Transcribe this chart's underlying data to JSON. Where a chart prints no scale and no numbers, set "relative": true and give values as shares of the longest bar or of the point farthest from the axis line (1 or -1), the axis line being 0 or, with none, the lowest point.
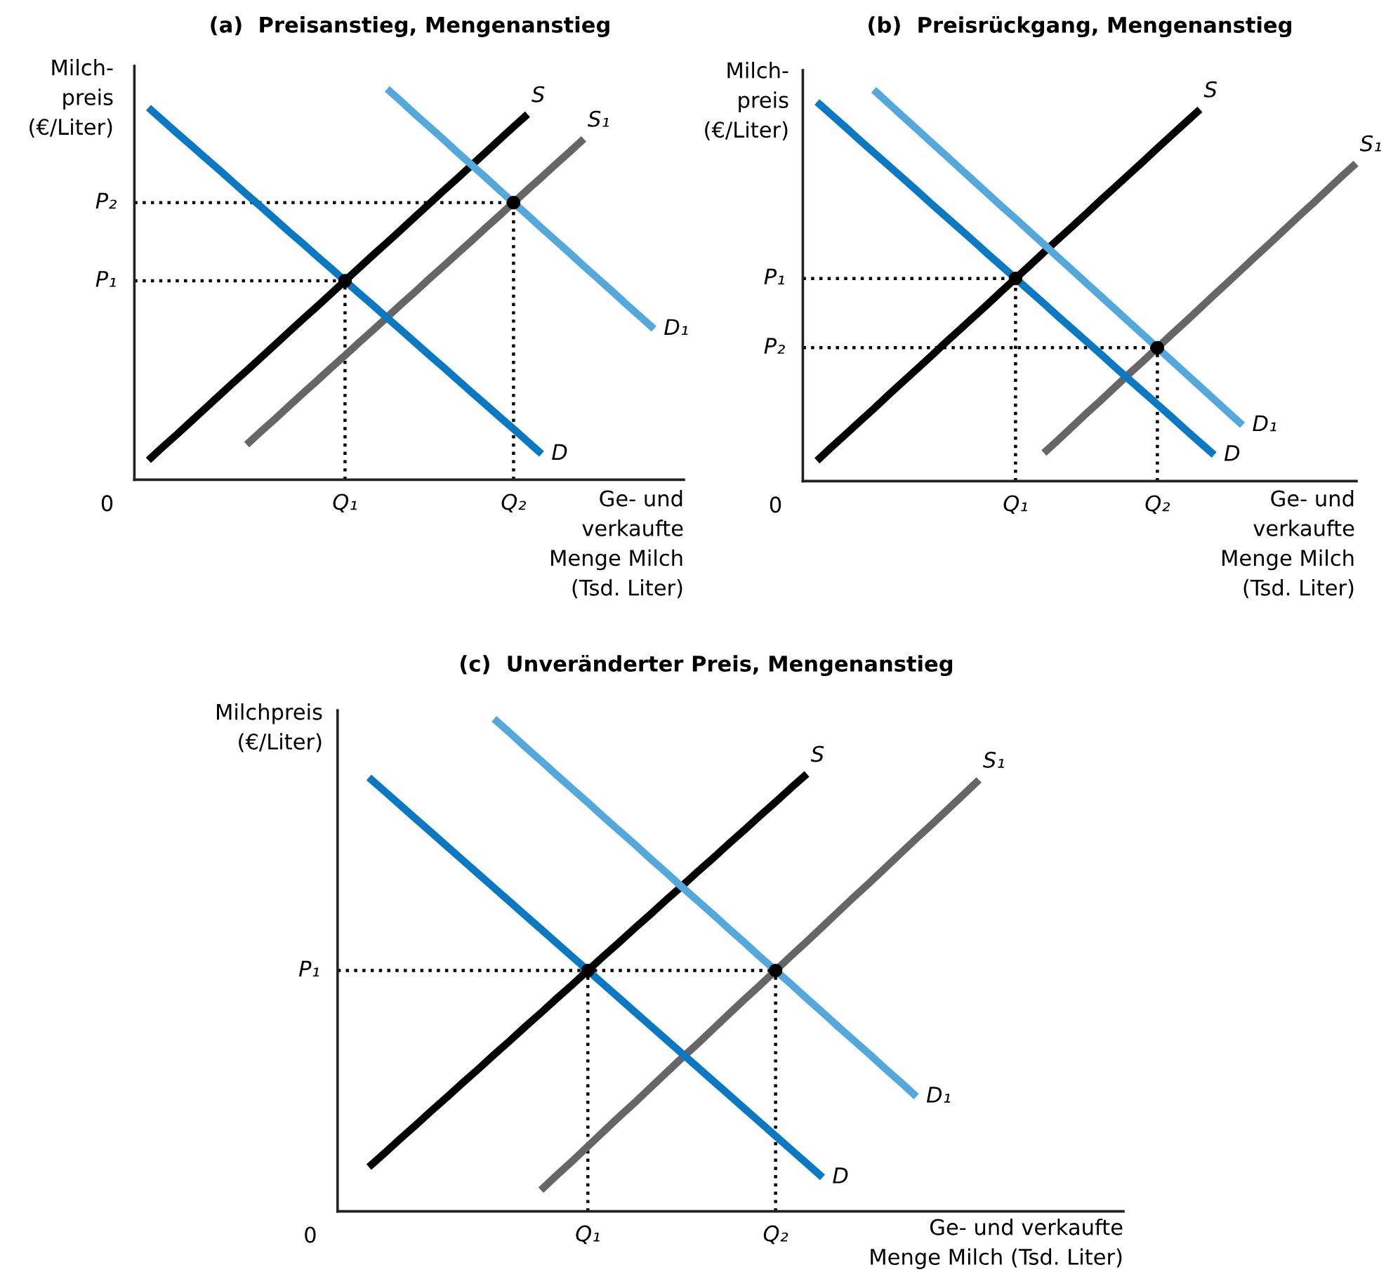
{
  "chart_data": [
    {
      "type": "line",
      "title": "(a)  Preisanstieg, Mengenanstieg",
      "ylabel": "Milch-\npreis\n(€/Liter)",
      "xlabel": "Ge- und\nverkaufte\nMenge Milch\n(Tsd. Liter)",
      "relative": true,
      "categories": [
        null,
        null,
        null,
        null,
        null,
        null,
        null,
        null,
        null,
        null,
        null,
        null,
        null,
        null,
        null,
        "Q₁",
        null,
        null,
        null,
        null,
        null,
        null,
        null,
        null,
        null,
        null,
        null,
        "Q₂",
        null,
        null,
        null,
        null,
        null,
        null,
        null,
        null,
        null,
        null,
        null,
        null
      ],
      "annotations": [
        "0"
      ],
      "series": [
        {
          "name": "P₁",
          "color": "#000000",
          "line_style": "dotted",
          "values": [
            0.509,
            0.509,
            0.509,
            0.509,
            0.509,
            0.509,
            0.509,
            0.509,
            0.509,
            0.509,
            0.509,
            0.509,
            0.509,
            0.509,
            0.509,
            0.509,
            null,
            null,
            null,
            null,
            null,
            null,
            null,
            null,
            null,
            null,
            null,
            null,
            null,
            null,
            null,
            null,
            null,
            null,
            null,
            null,
            null,
            null,
            null,
            null
          ]
        },
        {
          "name": "P₂",
          "color": "#000000",
          "line_style": "dotted",
          "values": [
            0.709,
            0.709,
            0.709,
            0.709,
            0.709,
            0.709,
            0.709,
            0.709,
            0.709,
            0.709,
            0.709,
            0.709,
            0.709,
            0.709,
            0.709,
            0.709,
            0.709,
            0.709,
            0.709,
            0.709,
            0.709,
            0.709,
            0.709,
            0.709,
            0.709,
            0.709,
            0.709,
            0.709,
            null,
            null,
            null,
            null,
            null,
            null,
            null,
            null,
            null,
            null,
            null,
            null
          ]
        },
        {
          "name": "S",
          "color": "#000000",
          "values": [
            null,
            0.05,
            0.083,
            0.115,
            0.148,
            0.181,
            0.214,
            0.247,
            0.279,
            0.312,
            0.345,
            0.378,
            0.411,
            0.443,
            0.476,
            0.509,
            0.542,
            0.575,
            0.607,
            0.64,
            0.673,
            0.706,
            0.739,
            0.771,
            0.804,
            0.837,
            0.87,
            0.903,
            0.935,
            null,
            null,
            null,
            null,
            null,
            null,
            null,
            null,
            null,
            null,
            null
          ]
        },
        {
          "name": "S₁",
          "color": "#666666",
          "values": [
            null,
            null,
            null,
            null,
            null,
            null,
            null,
            null,
            0.09,
            0.123,
            0.155,
            0.188,
            0.221,
            0.253,
            0.286,
            0.318,
            0.351,
            0.383,
            0.416,
            0.449,
            0.481,
            0.514,
            0.546,
            0.579,
            0.611,
            0.644,
            0.676,
            0.709,
            0.742,
            0.774,
            0.807,
            0.839,
            0.872,
            null,
            null,
            null,
            null,
            null,
            null,
            null
          ]
        },
        {
          "name": "D",
          "color": "#0a78c2",
          "values": [
            null,
            0.952,
            0.92,
            0.888,
            0.857,
            0.825,
            0.794,
            0.762,
            0.73,
            0.699,
            0.667,
            0.635,
            0.604,
            0.572,
            0.541,
            0.509,
            0.477,
            0.446,
            0.414,
            0.383,
            0.351,
            0.319,
            0.288,
            0.256,
            0.224,
            0.193,
            0.161,
            0.13,
            0.098,
            0.066,
            null,
            null,
            null,
            null,
            null,
            null,
            null,
            null,
            null,
            null
          ]
        },
        {
          "name": "D₁",
          "color": "#54a8dc",
          "values": [
            null,
            null,
            null,
            null,
            null,
            null,
            null,
            null,
            null,
            null,
            null,
            null,
            null,
            null,
            null,
            null,
            null,
            null,
            1.0,
            0.968,
            0.935,
            0.903,
            0.871,
            0.838,
            0.806,
            0.774,
            0.741,
            0.709,
            0.677,
            0.644,
            0.612,
            0.58,
            0.547,
            0.515,
            0.483,
            0.45,
            0.418,
            0.386,
            null,
            null
          ]
        },
        {
          "type": "lollipop",
          "color": "#000000",
          "line_style": "dotted",
          "marker": "circle",
          "values": [
            null,
            null,
            null,
            null,
            null,
            null,
            null,
            null,
            null,
            null,
            null,
            null,
            null,
            null,
            null,
            0.509,
            null,
            null,
            null,
            null,
            null,
            null,
            null,
            null,
            null,
            null,
            null,
            0.709,
            null,
            null,
            null,
            null,
            null,
            null,
            null,
            null,
            null,
            null,
            null,
            null
          ]
        }
      ]
    },
    {
      "type": "line",
      "title": "(b)  Preisrückgang, Mengenanstieg",
      "ylabel": "Milch-\npreis\n(€/Liter)",
      "xlabel": "Ge- und\nverkaufte\nMenge Milch\n(Tsd. Liter)",
      "relative": true,
      "categories": [
        null,
        null,
        null,
        null,
        null,
        null,
        null,
        null,
        null,
        null,
        null,
        null,
        null,
        null,
        null,
        "Q₁",
        null,
        null,
        null,
        null,
        null,
        null,
        null,
        null,
        null,
        "Q₂",
        null,
        null,
        null,
        null,
        null,
        null,
        null,
        null,
        null,
        null,
        null,
        null,
        null,
        null
      ],
      "annotations": [
        "0"
      ],
      "series": [
        {
          "name": "P₁",
          "color": "#000000",
          "line_style": "dotted",
          "values": [
            0.518,
            0.518,
            0.518,
            0.518,
            0.518,
            0.518,
            0.518,
            0.518,
            0.518,
            0.518,
            0.518,
            0.518,
            0.518,
            0.518,
            0.518,
            0.518,
            null,
            null,
            null,
            null,
            null,
            null,
            null,
            null,
            null,
            null,
            null,
            null,
            null,
            null,
            null,
            null,
            null,
            null,
            null,
            null,
            null,
            null,
            null,
            null
          ]
        },
        {
          "name": "P₂",
          "color": "#000000",
          "line_style": "dotted",
          "values": [
            0.341,
            0.341,
            0.341,
            0.341,
            0.341,
            0.341,
            0.341,
            0.341,
            0.341,
            0.341,
            0.341,
            0.341,
            0.341,
            0.341,
            0.341,
            0.341,
            0.341,
            0.341,
            0.341,
            0.341,
            0.341,
            0.341,
            0.341,
            0.341,
            0.341,
            0.341,
            null,
            null,
            null,
            null,
            null,
            null,
            null,
            null,
            null,
            null,
            null,
            null,
            null,
            null
          ]
        },
        {
          "name": "S",
          "color": "#000000",
          "values": [
            null,
            0.052,
            0.086,
            0.119,
            0.152,
            0.185,
            0.219,
            0.252,
            0.285,
            0.318,
            0.352,
            0.385,
            0.418,
            0.451,
            0.485,
            0.518,
            0.551,
            0.585,
            0.618,
            0.651,
            0.684,
            0.718,
            0.751,
            0.784,
            0.817,
            0.851,
            0.884,
            0.917,
            0.95,
            null,
            null,
            null,
            null,
            null,
            null,
            null,
            null,
            null,
            null,
            null
          ]
        },
        {
          "name": "S₁",
          "color": "#666666",
          "values": [
            null,
            null,
            null,
            null,
            null,
            null,
            null,
            null,
            null,
            null,
            null,
            null,
            null,
            null,
            null,
            null,
            null,
            0.072,
            0.105,
            0.139,
            0.173,
            0.206,
            0.24,
            0.274,
            0.307,
            0.341,
            0.375,
            0.408,
            0.442,
            0.476,
            0.509,
            0.543,
            0.577,
            0.61,
            0.644,
            0.678,
            0.711,
            0.745,
            0.779,
            0.812
          ]
        },
        {
          "name": "D",
          "color": "#0a78c2",
          "values": [
            null,
            0.969,
            0.937,
            0.905,
            0.872,
            0.84,
            0.808,
            0.776,
            0.744,
            0.711,
            0.679,
            0.647,
            0.615,
            0.582,
            0.55,
            0.518,
            0.486,
            0.454,
            0.421,
            0.389,
            0.357,
            0.325,
            0.292,
            0.26,
            0.228,
            0.196,
            0.164,
            0.131,
            0.099,
            0.067,
            null,
            null,
            null,
            null,
            null,
            null,
            null,
            null,
            null,
            null
          ]
        },
        {
          "name": "D₁",
          "color": "#54a8dc",
          "values": [
            null,
            null,
            null,
            null,
            null,
            1.0,
            0.967,
            0.934,
            0.901,
            0.868,
            0.835,
            0.802,
            0.769,
            0.736,
            0.703,
            0.671,
            0.638,
            0.605,
            0.572,
            0.539,
            0.506,
            0.473,
            0.44,
            0.407,
            0.374,
            0.341,
            0.308,
            0.275,
            0.242,
            0.209,
            0.176,
            0.143,
            null,
            null,
            null,
            null,
            null,
            null,
            null,
            null
          ]
        },
        {
          "type": "lollipop",
          "color": "#000000",
          "line_style": "dotted",
          "marker": "circle",
          "values": [
            null,
            null,
            null,
            null,
            null,
            null,
            null,
            null,
            null,
            null,
            null,
            null,
            null,
            null,
            null,
            0.518,
            null,
            null,
            null,
            null,
            null,
            null,
            null,
            null,
            null,
            0.341,
            null,
            null,
            null,
            null,
            null,
            null,
            null,
            null,
            null,
            null,
            null,
            null,
            null,
            null
          ]
        }
      ]
    },
    {
      "type": "line",
      "title": "(c)  Unveränderter Preis, Mengenanstieg",
      "ylabel": "Milchpreis\n(€/Liter)",
      "xlabel": "Ge- und verkaufte\nMenge Milch (Tsd. Liter)",
      "relative": true,
      "categories": [
        null,
        null,
        null,
        null,
        null,
        null,
        null,
        null,
        null,
        null,
        null,
        null,
        null,
        null,
        null,
        null,
        "Q₁",
        null,
        null,
        null,
        null,
        null,
        null,
        null,
        null,
        null,
        null,
        null,
        "Q₂",
        null,
        null,
        null,
        null,
        null,
        null,
        null,
        null,
        null,
        null,
        null,
        null,
        null,
        null,
        null,
        null,
        null,
        null,
        null,
        null,
        null,
        null
      ],
      "annotations": [
        "0"
      ],
      "series": [
        {
          "name": "P₁",
          "color": "#000000",
          "line_style": "dotted",
          "values": [
            0.489,
            0.489,
            0.489,
            0.489,
            0.489,
            0.489,
            0.489,
            0.489,
            0.489,
            0.489,
            0.489,
            0.489,
            0.489,
            0.489,
            0.489,
            0.489,
            0.489,
            0.489,
            0.489,
            0.489,
            0.489,
            0.489,
            0.489,
            0.489,
            0.489,
            0.489,
            0.489,
            0.489,
            0.489,
            null,
            null,
            null,
            null,
            null,
            null,
            null,
            null,
            null,
            null,
            null,
            null,
            null,
            null,
            null,
            null,
            null,
            null,
            null,
            null,
            null,
            null
          ]
        },
        {
          "name": "S",
          "color": "#000000",
          "values": [
            null,
            null,
            0.09,
            0.118,
            0.147,
            0.175,
            0.204,
            0.232,
            0.261,
            0.289,
            0.318,
            0.346,
            0.375,
            0.403,
            0.432,
            0.46,
            0.489,
            0.518,
            0.546,
            0.575,
            0.603,
            0.632,
            0.66,
            0.689,
            0.717,
            0.746,
            0.774,
            0.803,
            0.831,
            0.86,
            0.888,
            null,
            null,
            null,
            null,
            null,
            null,
            null,
            null,
            null,
            null,
            null,
            null,
            null,
            null,
            null,
            null,
            null,
            null,
            null,
            null
          ]
        },
        {
          "name": "S₁",
          "color": "#666666",
          "values": [
            null,
            null,
            null,
            null,
            null,
            null,
            null,
            null,
            null,
            null,
            null,
            null,
            null,
            0.043,
            0.073,
            0.102,
            0.132,
            0.162,
            0.192,
            0.221,
            0.251,
            0.281,
            0.311,
            0.34,
            0.37,
            0.4,
            0.43,
            0.459,
            0.489,
            0.519,
            0.548,
            0.578,
            0.608,
            0.638,
            0.667,
            0.697,
            0.727,
            0.757,
            0.786,
            0.816,
            0.846,
            0.876,
            null,
            null,
            null,
            null,
            null,
            null,
            null,
            null,
            null
          ]
        },
        {
          "name": "D",
          "color": "#0a78c2",
          "values": [
            null,
            null,
            0.881,
            0.853,
            0.825,
            0.797,
            0.769,
            0.741,
            0.713,
            0.685,
            0.657,
            0.629,
            0.601,
            0.573,
            0.545,
            0.517,
            0.489,
            0.461,
            0.433,
            0.405,
            0.377,
            0.349,
            0.321,
            0.293,
            0.265,
            0.237,
            0.209,
            0.181,
            0.153,
            0.125,
            0.097,
            0.069,
            null,
            null,
            null,
            null,
            null,
            null,
            null,
            null,
            null,
            null,
            null,
            null,
            null,
            null,
            null,
            null,
            null,
            null,
            null
          ]
        },
        {
          "name": "D₁",
          "color": "#54a8dc",
          "values": [
            null,
            null,
            null,
            null,
            null,
            null,
            null,
            null,
            null,
            null,
            1.0,
            0.972,
            0.943,
            0.915,
            0.886,
            0.858,
            0.83,
            0.801,
            0.773,
            0.745,
            0.716,
            0.688,
            0.659,
            0.631,
            0.603,
            0.574,
            0.546,
            0.517,
            0.489,
            0.461,
            0.432,
            0.404,
            0.375,
            0.347,
            0.319,
            0.29,
            0.262,
            0.233,
            null,
            null,
            null,
            null,
            null,
            null,
            null,
            null,
            null,
            null,
            null,
            null,
            null
          ]
        },
        {
          "type": "lollipop",
          "color": "#000000",
          "line_style": "dotted",
          "marker": "circle",
          "values": [
            null,
            null,
            null,
            null,
            null,
            null,
            null,
            null,
            null,
            null,
            null,
            null,
            null,
            null,
            null,
            null,
            0.489,
            null,
            null,
            null,
            null,
            null,
            null,
            null,
            null,
            null,
            null,
            null,
            0.489,
            null,
            null,
            null,
            null,
            null,
            null,
            null,
            null,
            null,
            null,
            null,
            null,
            null,
            null,
            null,
            null,
            null,
            null,
            null,
            null,
            null,
            null
          ]
        }
      ]
    }
  ]
}
